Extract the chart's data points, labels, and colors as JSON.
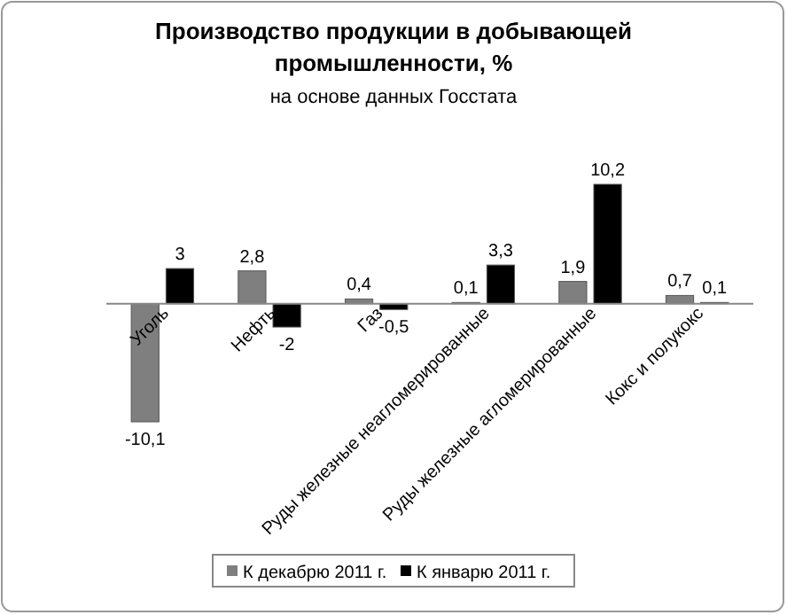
{
  "chart_data": {
    "type": "bar",
    "title": "Производство продукции в добывающей промышленности, %",
    "subtitle": "на основе данных Госстата",
    "categories": [
      "Уголь",
      "Нефть",
      "Газ",
      "Руды железные неагломерированные",
      "Руды железные агломерированные",
      "Кокс и полукокс"
    ],
    "series": [
      {
        "name": "К декабрю 2011 г.",
        "color": "#7f7f7f",
        "values": [
          -10.1,
          2.8,
          0.4,
          0.1,
          1.9,
          0.7
        ],
        "value_labels": [
          "-10,1",
          "2,8",
          "0,4",
          "0,1",
          "1,9",
          "0,7"
        ]
      },
      {
        "name": "К январю 2011 г.",
        "color": "#000000",
        "values": [
          3,
          -2,
          -0.5,
          3.3,
          10.2,
          0.1
        ],
        "value_labels": [
          "3",
          "-2",
          "-0,5",
          "3,3",
          "10,2",
          "0,1"
        ]
      }
    ],
    "legend": "bottom"
  }
}
